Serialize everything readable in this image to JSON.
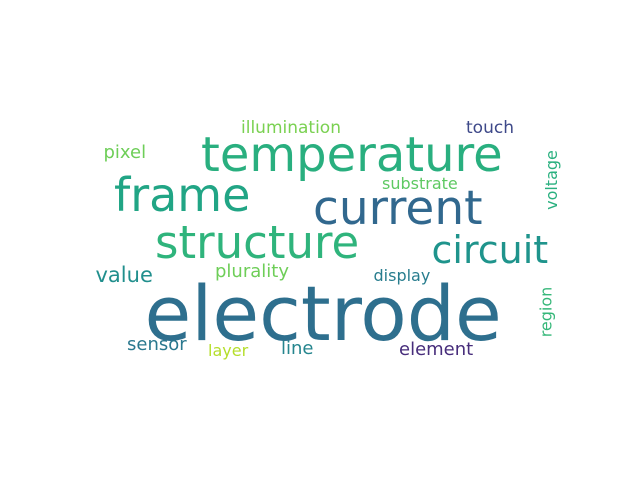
{
  "word_cloud": {
    "words": [
      {
        "key": "electrode",
        "text": "electrode",
        "color": "#2e6f8e",
        "rank": 1
      },
      {
        "key": "temperature",
        "text": "temperature",
        "color": "#29af7f",
        "rank": 2
      },
      {
        "key": "current",
        "text": "current",
        "color": "#31688e",
        "rank": 3
      },
      {
        "key": "frame",
        "text": "frame",
        "color": "#21a585",
        "rank": 4
      },
      {
        "key": "structure",
        "text": "structure",
        "color": "#2fb47c",
        "rank": 5
      },
      {
        "key": "circuit",
        "text": "circuit",
        "color": "#1f948c",
        "rank": 6
      },
      {
        "key": "value",
        "text": "value",
        "color": "#218f8d",
        "rank": 7
      },
      {
        "key": "plurality",
        "text": "plurality",
        "color": "#6ece58",
        "rank": 8
      },
      {
        "key": "display",
        "text": "display",
        "color": "#287d8e",
        "rank": 9
      },
      {
        "key": "illumination",
        "text": "illumination",
        "color": "#7ad151",
        "rank": 10
      },
      {
        "key": "touch",
        "text": "touch",
        "color": "#3e4989",
        "rank": 11
      },
      {
        "key": "pixel",
        "text": "pixel",
        "color": "#6ece58",
        "rank": 12
      },
      {
        "key": "substrate",
        "text": "substrate",
        "color": "#5ec962",
        "rank": 13
      },
      {
        "key": "voltage",
        "text": "voltage",
        "color": "#2ab07f",
        "rank": 14
      },
      {
        "key": "region",
        "text": "region",
        "color": "#35b779",
        "rank": 15
      },
      {
        "key": "sensor",
        "text": "sensor",
        "color": "#2a788e",
        "rank": 16
      },
      {
        "key": "layer",
        "text": "layer",
        "color": "#b5de2b",
        "rank": 17
      },
      {
        "key": "line",
        "text": "line",
        "color": "#25858e",
        "rank": 18
      },
      {
        "key": "element",
        "text": "element",
        "color": "#472d7b",
        "rank": 19
      }
    ]
  }
}
